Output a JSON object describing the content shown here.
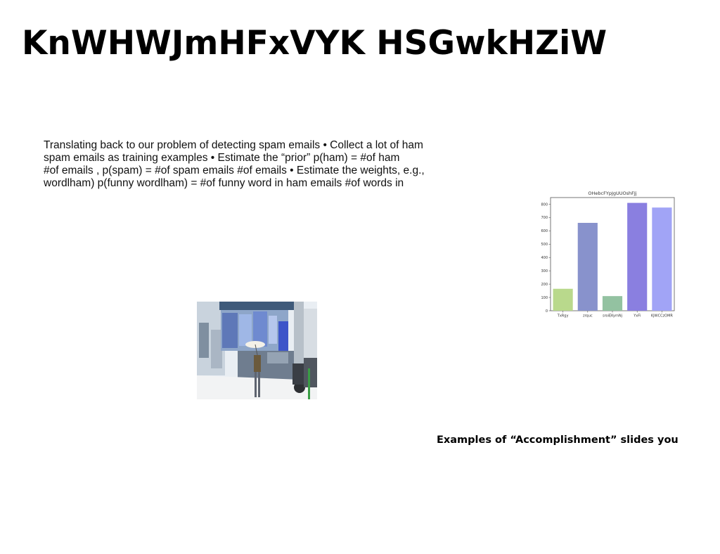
{
  "slide": {
    "title": "KnWHWJmHFxVYK HSGwkHZiW",
    "body_lines": [
      "Translating back to our problem of detecting spam emails • Collect a lot of ham",
      "spam emails as training examples • Estimate the “prior” p(ham) = #of ham",
      "#of emails , p(spam) = #of spam emails #of emails • Estimate the weights, e.g.,",
      "wordlham) p(funny wordlham) = #of funny word in ham emails #of words in"
    ],
    "footer": "Examples of “Accomplishment” slides you"
  },
  "chart_data": {
    "type": "bar",
    "title": "OHebcFYpJgUUOshFJj",
    "categories": [
      "TxRgy",
      "zrquc",
      "sroiEKymNj",
      "YxFi",
      "KJWCCzOMR"
    ],
    "values": [
      165,
      660,
      110,
      810,
      775
    ],
    "colors": [
      "#b9d98c",
      "#8892cc",
      "#93c2a1",
      "#8a7fe0",
      "#a1a4f6"
    ],
    "ylim": [
      0,
      850
    ],
    "yticks": [
      0,
      100,
      200,
      300,
      400,
      500,
      600,
      700,
      800
    ],
    "xlabel": "",
    "ylabel": "",
    "grid": false
  }
}
